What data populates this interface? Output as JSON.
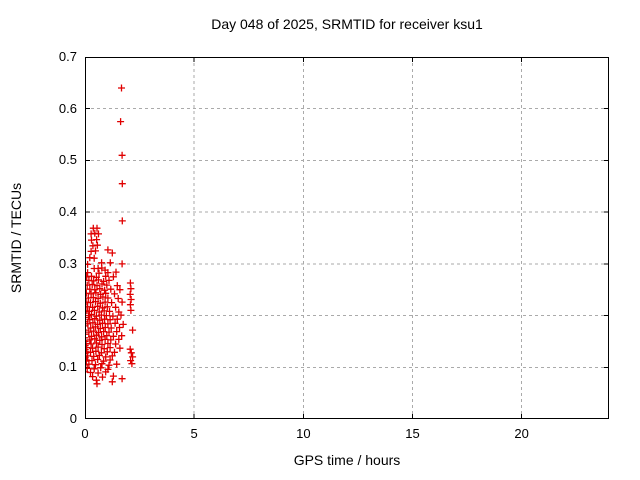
{
  "title": "Day 048 of 2025, SRMTID for receiver ksu1",
  "colors": {
    "background": "#ffffff",
    "text": "#000000",
    "border": "#000000",
    "grid": "#aaaaaa",
    "marker": "#e00000"
  },
  "chart_data": {
    "type": "scatter",
    "title": "Day 048 of 2025, SRMTID for receiver ksu1",
    "xlabel": "GPS time / hours",
    "ylabel": "SRMTID / TECUs",
    "xlim": [
      0,
      24
    ],
    "ylim": [
      0,
      0.7
    ],
    "xticks": [
      0,
      5,
      10,
      15,
      20
    ],
    "xtick_labels": [
      "0",
      "5",
      "10",
      "15",
      "20"
    ],
    "yticks": [
      0,
      0.1,
      0.2,
      0.3,
      0.4,
      0.5,
      0.6,
      0.7
    ],
    "ytick_labels": [
      "0",
      "0.1",
      "0.2",
      "0.3",
      "0.4",
      "0.5",
      "0.6",
      "0.7"
    ],
    "grid": true,
    "grid_style": "dashed",
    "legend": "none",
    "marker": "plus",
    "marker_size": 7,
    "marker_color": "#e00000",
    "series": [
      {
        "name": "SRMTID",
        "points": [
          [
            1.67,
            0.64
          ],
          [
            1.63,
            0.575
          ],
          [
            1.7,
            0.51
          ],
          [
            1.71,
            0.455
          ],
          [
            1.71,
            0.383
          ],
          [
            0.38,
            0.369
          ],
          [
            0.55,
            0.369
          ],
          [
            0.28,
            0.358
          ],
          [
            0.45,
            0.359
          ],
          [
            0.62,
            0.358
          ],
          [
            0.3,
            0.346
          ],
          [
            0.53,
            0.347
          ],
          [
            0.36,
            0.335
          ],
          [
            0.57,
            0.336
          ],
          [
            0.28,
            0.324
          ],
          [
            0.48,
            0.325
          ],
          [
            1.05,
            0.327
          ],
          [
            1.25,
            0.321
          ],
          [
            0.22,
            0.312
          ],
          [
            0.42,
            0.311
          ],
          [
            0.12,
            0.299
          ],
          [
            0.76,
            0.302
          ],
          [
            1.16,
            0.302
          ],
          [
            1.7,
            0.3
          ],
          [
            0.42,
            0.291
          ],
          [
            0.6,
            0.291
          ],
          [
            0.77,
            0.292
          ],
          [
            0.92,
            0.288
          ],
          [
            0.12,
            0.283
          ],
          [
            0.64,
            0.282
          ],
          [
            1.05,
            0.283
          ],
          [
            1.42,
            0.284
          ],
          [
            0.08,
            0.275
          ],
          [
            0.3,
            0.276
          ],
          [
            0.52,
            0.274
          ],
          [
            0.95,
            0.276
          ],
          [
            1.3,
            0.275
          ],
          [
            0.18,
            0.268
          ],
          [
            0.4,
            0.267
          ],
          [
            0.62,
            0.269
          ],
          [
            0.85,
            0.266
          ],
          [
            1.1,
            0.268
          ],
          [
            2.08,
            0.263
          ],
          [
            0.1,
            0.259
          ],
          [
            0.33,
            0.26
          ],
          [
            0.55,
            0.258
          ],
          [
            0.78,
            0.261
          ],
          [
            1.0,
            0.259
          ],
          [
            1.48,
            0.258
          ],
          [
            2.1,
            0.252
          ],
          [
            0.22,
            0.251
          ],
          [
            0.45,
            0.25
          ],
          [
            0.68,
            0.252
          ],
          [
            0.9,
            0.249
          ],
          [
            1.18,
            0.251
          ],
          [
            1.6,
            0.25
          ],
          [
            0.06,
            0.243
          ],
          [
            0.28,
            0.242
          ],
          [
            0.5,
            0.244
          ],
          [
            0.72,
            0.241
          ],
          [
            0.95,
            0.243
          ],
          [
            1.35,
            0.242
          ],
          [
            2.07,
            0.241
          ],
          [
            0.15,
            0.234
          ],
          [
            0.38,
            0.235
          ],
          [
            0.6,
            0.233
          ],
          [
            0.82,
            0.236
          ],
          [
            1.05,
            0.234
          ],
          [
            1.52,
            0.233
          ],
          [
            2.11,
            0.231
          ],
          [
            0.05,
            0.226
          ],
          [
            0.25,
            0.225
          ],
          [
            0.48,
            0.227
          ],
          [
            0.7,
            0.224
          ],
          [
            0.92,
            0.226
          ],
          [
            1.22,
            0.225
          ],
          [
            1.7,
            0.226
          ],
          [
            2.08,
            0.221
          ],
          [
            0.12,
            0.217
          ],
          [
            0.35,
            0.216
          ],
          [
            0.58,
            0.218
          ],
          [
            0.8,
            0.215
          ],
          [
            1.02,
            0.217
          ],
          [
            1.4,
            0.216
          ],
          [
            2.1,
            0.21
          ],
          [
            0.04,
            0.209
          ],
          [
            0.2,
            0.208
          ],
          [
            0.43,
            0.21
          ],
          [
            0.65,
            0.207
          ],
          [
            0.88,
            0.209
          ],
          [
            1.12,
            0.208
          ],
          [
            1.55,
            0.207
          ],
          [
            0.01,
            0.205
          ],
          [
            0.01,
            0.196
          ],
          [
            0.01,
            0.188
          ],
          [
            0.01,
            0.18
          ],
          [
            0.01,
            0.172
          ],
          [
            0.01,
            0.164
          ],
          [
            0.01,
            0.157
          ],
          [
            0.01,
            0.15
          ],
          [
            0.01,
            0.142
          ],
          [
            0.01,
            0.134
          ],
          [
            0.01,
            0.127
          ],
          [
            0.01,
            0.119
          ],
          [
            0.01,
            0.112
          ],
          [
            0.01,
            0.105
          ],
          [
            0.01,
            0.098
          ],
          [
            0.01,
            0.091
          ],
          [
            0.16,
            0.2
          ],
          [
            0.3,
            0.202
          ],
          [
            0.52,
            0.199
          ],
          [
            0.75,
            0.201
          ],
          [
            0.98,
            0.2
          ],
          [
            1.28,
            0.199
          ],
          [
            1.65,
            0.201
          ],
          [
            0.22,
            0.192
          ],
          [
            0.45,
            0.194
          ],
          [
            0.68,
            0.191
          ],
          [
            0.9,
            0.193
          ],
          [
            1.15,
            0.192
          ],
          [
            1.48,
            0.193
          ],
          [
            0.13,
            0.184
          ],
          [
            0.36,
            0.186
          ],
          [
            0.58,
            0.183
          ],
          [
            0.8,
            0.185
          ],
          [
            1.05,
            0.184
          ],
          [
            1.38,
            0.185
          ],
          [
            1.75,
            0.183
          ],
          [
            0.26,
            0.176
          ],
          [
            0.48,
            0.178
          ],
          [
            0.7,
            0.175
          ],
          [
            0.93,
            0.177
          ],
          [
            1.2,
            0.176
          ],
          [
            1.58,
            0.177
          ],
          [
            0.18,
            0.168
          ],
          [
            0.4,
            0.17
          ],
          [
            0.62,
            0.167
          ],
          [
            0.85,
            0.169
          ],
          [
            1.1,
            0.168
          ],
          [
            1.45,
            0.169
          ],
          [
            2.18,
            0.172
          ],
          [
            0.3,
            0.16
          ],
          [
            0.53,
            0.162
          ],
          [
            0.76,
            0.159
          ],
          [
            1.0,
            0.161
          ],
          [
            1.3,
            0.16
          ],
          [
            1.68,
            0.161
          ],
          [
            0.22,
            0.153
          ],
          [
            0.45,
            0.155
          ],
          [
            0.68,
            0.152
          ],
          [
            0.92,
            0.154
          ],
          [
            1.18,
            0.153
          ],
          [
            1.55,
            0.154
          ],
          [
            0.05,
            0.146
          ],
          [
            0.28,
            0.145
          ],
          [
            0.52,
            0.147
          ],
          [
            0.78,
            0.144
          ],
          [
            1.05,
            0.146
          ],
          [
            1.4,
            0.145
          ],
          [
            2.07,
            0.135
          ],
          [
            0.08,
            0.138
          ],
          [
            0.35,
            0.137
          ],
          [
            0.6,
            0.139
          ],
          [
            0.88,
            0.136
          ],
          [
            1.15,
            0.138
          ],
          [
            1.6,
            0.137
          ],
          [
            2.12,
            0.128
          ],
          [
            0.04,
            0.13
          ],
          [
            0.25,
            0.129
          ],
          [
            0.5,
            0.131
          ],
          [
            0.75,
            0.128
          ],
          [
            1.02,
            0.13
          ],
          [
            1.35,
            0.129
          ],
          [
            2.18,
            0.12
          ],
          [
            0.12,
            0.122
          ],
          [
            0.4,
            0.121
          ],
          [
            0.66,
            0.123
          ],
          [
            0.95,
            0.12
          ],
          [
            1.25,
            0.122
          ],
          [
            2.09,
            0.113
          ],
          [
            0.06,
            0.114
          ],
          [
            0.32,
            0.113
          ],
          [
            0.58,
            0.115
          ],
          [
            0.85,
            0.112
          ],
          [
            1.15,
            0.114
          ],
          [
            2.15,
            0.107
          ],
          [
            0.18,
            0.106
          ],
          [
            0.48,
            0.105
          ],
          [
            0.78,
            0.107
          ],
          [
            1.1,
            0.104
          ],
          [
            1.45,
            0.106
          ],
          [
            0.1,
            0.098
          ],
          [
            0.42,
            0.097
          ],
          [
            0.72,
            0.099
          ],
          [
            1.05,
            0.096
          ],
          [
            0.25,
            0.09
          ],
          [
            0.6,
            0.089
          ],
          [
            0.95,
            0.091
          ],
          [
            0.35,
            0.082
          ],
          [
            0.8,
            0.081
          ],
          [
            1.3,
            0.083
          ],
          [
            0.52,
            0.075
          ],
          [
            1.25,
            0.072
          ],
          [
            0.55,
            0.068
          ],
          [
            1.7,
            0.078
          ]
        ]
      }
    ]
  }
}
